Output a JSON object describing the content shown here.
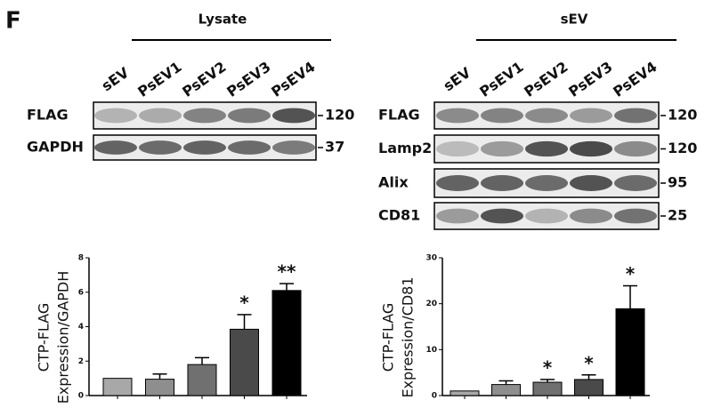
{
  "figure": {
    "panel": "F",
    "blots": [
      {
        "title": "Lysate",
        "lanes": [
          "sEV",
          "PsEV1",
          "PsEV2",
          "PsEV3",
          "PsEV4"
        ],
        "rows": [
          {
            "label": "FLAG",
            "mw": 120
          },
          {
            "label": "GAPDH",
            "mw": 37
          }
        ]
      },
      {
        "title": "sEV",
        "lanes": [
          "sEV",
          "PsEV1",
          "PsEV2",
          "PsEV3",
          "PsEV4"
        ],
        "rows": [
          {
            "label": "FLAG",
            "mw": 120
          },
          {
            "label": "Lamp2",
            "mw": 120
          },
          {
            "label": "Alix",
            "mw": 95
          },
          {
            "label": "CD81",
            "mw": 25
          }
        ]
      }
    ]
  },
  "chart_data": [
    {
      "type": "bar",
      "y_label": [
        "CTP-FLAG",
        "Expression/GAPDH"
      ],
      "values": [
        1,
        0.95,
        1.8,
        3.85,
        6.1
      ],
      "errors": [
        0,
        0.3,
        0.4,
        0.85,
        0.4
      ],
      "annotations": [
        null,
        null,
        null,
        "*",
        "**"
      ],
      "colors": [
        "#a8a8a8",
        "#8e8e8e",
        "#707070",
        "#4a4a4a",
        "#000000"
      ],
      "ylim": [
        0,
        8
      ],
      "yticks": [
        0,
        2,
        4,
        6,
        8
      ]
    },
    {
      "type": "bar",
      "y_label": [
        "CTP-FLAG",
        "Expression/CD81"
      ],
      "values": [
        1,
        2.4,
        2.9,
        3.5,
        18.9
      ],
      "errors": [
        0,
        0.8,
        0.6,
        1.0,
        5.0
      ],
      "annotations": [
        null,
        null,
        "*",
        "*",
        "*"
      ],
      "colors": [
        "#a8a8a8",
        "#8e8e8e",
        "#707070",
        "#4a4a4a",
        "#000000"
      ],
      "ylim": [
        0,
        30
      ],
      "yticks": [
        0,
        10,
        20,
        30
      ]
    }
  ]
}
